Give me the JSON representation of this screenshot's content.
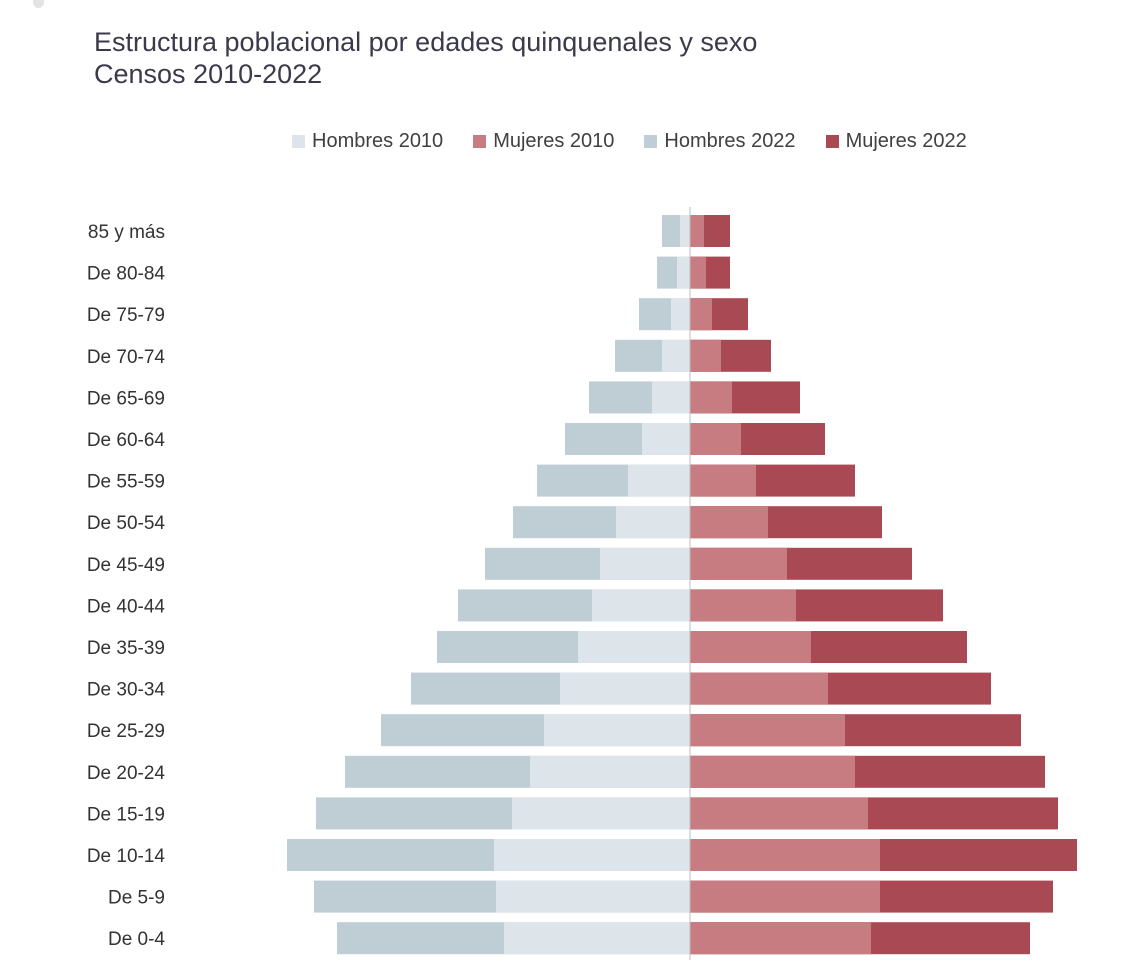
{
  "chart_data": {
    "type": "bar",
    "orientation": "horizontal-population-pyramid",
    "title": "Estructura poblacional por edades quinquenales y sexo",
    "subtitle": "Censos 2010-2022",
    "categories": [
      "85 y más",
      "De 80-84",
      "De 75-79",
      "De 70-74",
      "De 65-69",
      "De 60-64",
      "De 55-59",
      "De 50-54",
      "De 45-49",
      "De 40-44",
      "De 35-39",
      "De 30-34",
      "De 25-29",
      "De 20-24",
      "De 15-19",
      "De 10-14",
      "De 5-9",
      "De 0-4"
    ],
    "series": [
      {
        "name": "Hombres 2010",
        "color": "#dde4ea",
        "side": "left",
        "values": [
          10,
          13,
          19,
          28,
          38,
          48,
          62,
          74,
          90,
          98,
          112,
          130,
          146,
          160,
          178,
          196,
          194,
          186
        ]
      },
      {
        "name": "Mujeres 2010",
        "color": "#c67c80",
        "side": "right",
        "values": [
          14,
          16,
          22,
          31,
          42,
          51,
          66,
          78,
          97,
          106,
          121,
          138,
          155,
          165,
          178,
          190,
          190,
          181
        ]
      },
      {
        "name": "Hombres 2022",
        "color": "#bfcdd5",
        "side": "left",
        "values": [
          28,
          33,
          51,
          75,
          101,
          125,
          153,
          177,
          205,
          232,
          253,
          279,
          309,
          345,
          374,
          403,
          376,
          353
        ]
      },
      {
        "name": "Mujeres 2022",
        "color": "#a94954",
        "side": "right",
        "values": [
          40,
          40,
          58,
          81,
          110,
          135,
          165,
          192,
          222,
          253,
          277,
          301,
          331,
          355,
          368,
          387,
          363,
          340
        ]
      }
    ],
    "legend_position": "top",
    "grid": false
  }
}
